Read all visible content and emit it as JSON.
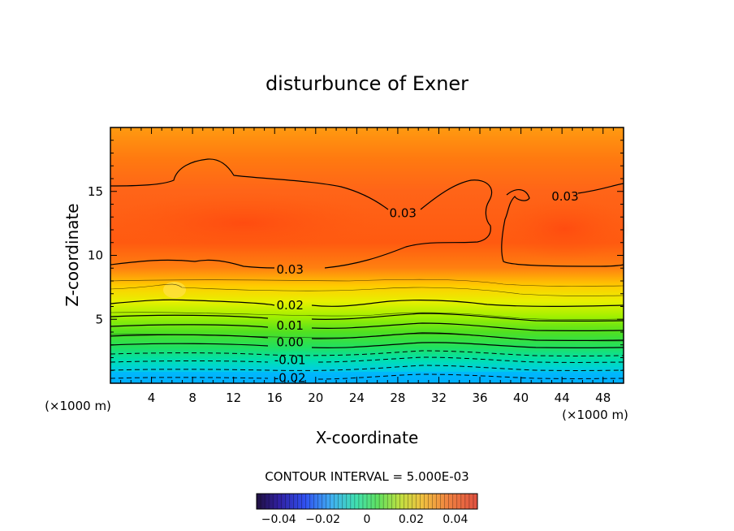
{
  "chart_data": {
    "type": "contour",
    "title": "disturbunce of Exner",
    "xlabel": "X-coordinate",
    "ylabel": "Z-coordinate",
    "x_unit_label_left": "(×1000 m)",
    "x_unit_label_right": "(×1000 m)",
    "xlim": [
      0,
      50
    ],
    "ylim": [
      0,
      20
    ],
    "x_ticks": [
      4,
      8,
      12,
      16,
      20,
      24,
      28,
      32,
      36,
      40,
      44,
      48
    ],
    "y_ticks": [
      5,
      10,
      15
    ],
    "contour_interval_text": "CONTOUR INTERVAL = 5.000E-03",
    "contour_labels": [
      {
        "text": "0.03",
        "x": 28.5,
        "z": 13.3
      },
      {
        "text": "0.03",
        "x": 44.3,
        "z": 14.6
      },
      {
        "text": "0.03",
        "x": 17.5,
        "z": 8.9
      },
      {
        "text": "0.02",
        "x": 17.5,
        "z": 6.1
      },
      {
        "text": "0.01",
        "x": 17.5,
        "z": 4.5
      },
      {
        "text": "0.00",
        "x": 17.5,
        "z": 3.2
      },
      {
        "text": "-0.01",
        "x": 17.5,
        "z": 1.8
      },
      {
        "text": "-0.02",
        "x": 17.5,
        "z": 0.4
      }
    ],
    "colorbar": {
      "range": [
        -0.05,
        0.05
      ],
      "tick_values": [
        -0.04,
        -0.02,
        0,
        0.02,
        0.04
      ],
      "tick_labels": [
        "−0.04",
        "−0.02",
        "0",
        "0.02",
        "0.04"
      ]
    }
  }
}
